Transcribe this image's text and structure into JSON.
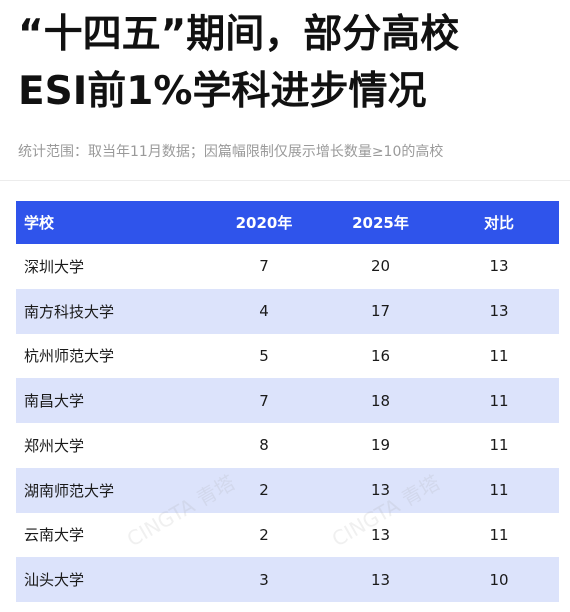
{
  "title": {
    "line1": "“十四五”期间，部分高校",
    "line2": "ESI前1%学科进步情况"
  },
  "subtitle": "统计范围：取当年11月数据；因篇幅限制仅展示增长数量≥10的高校",
  "table": {
    "headers": [
      "学校",
      "2020年",
      "2025年",
      "对比"
    ],
    "rows": [
      [
        "深圳大学",
        "7",
        "20",
        "13"
      ],
      [
        "南方科技大学",
        "4",
        "17",
        "13"
      ],
      [
        "杭州师范大学",
        "5",
        "16",
        "11"
      ],
      [
        "南昌大学",
        "7",
        "18",
        "11"
      ],
      [
        "郑州大学",
        "8",
        "19",
        "11"
      ],
      [
        "湖南师范大学",
        "2",
        "13",
        "11"
      ],
      [
        "云南大学",
        "2",
        "13",
        "11"
      ],
      [
        "汕头大学",
        "3",
        "13",
        "10"
      ]
    ]
  },
  "colors": {
    "header_bg": "#2f54eb",
    "row_alt_bg": "#dce3fb"
  },
  "watermark": "CINGTA 青塔"
}
